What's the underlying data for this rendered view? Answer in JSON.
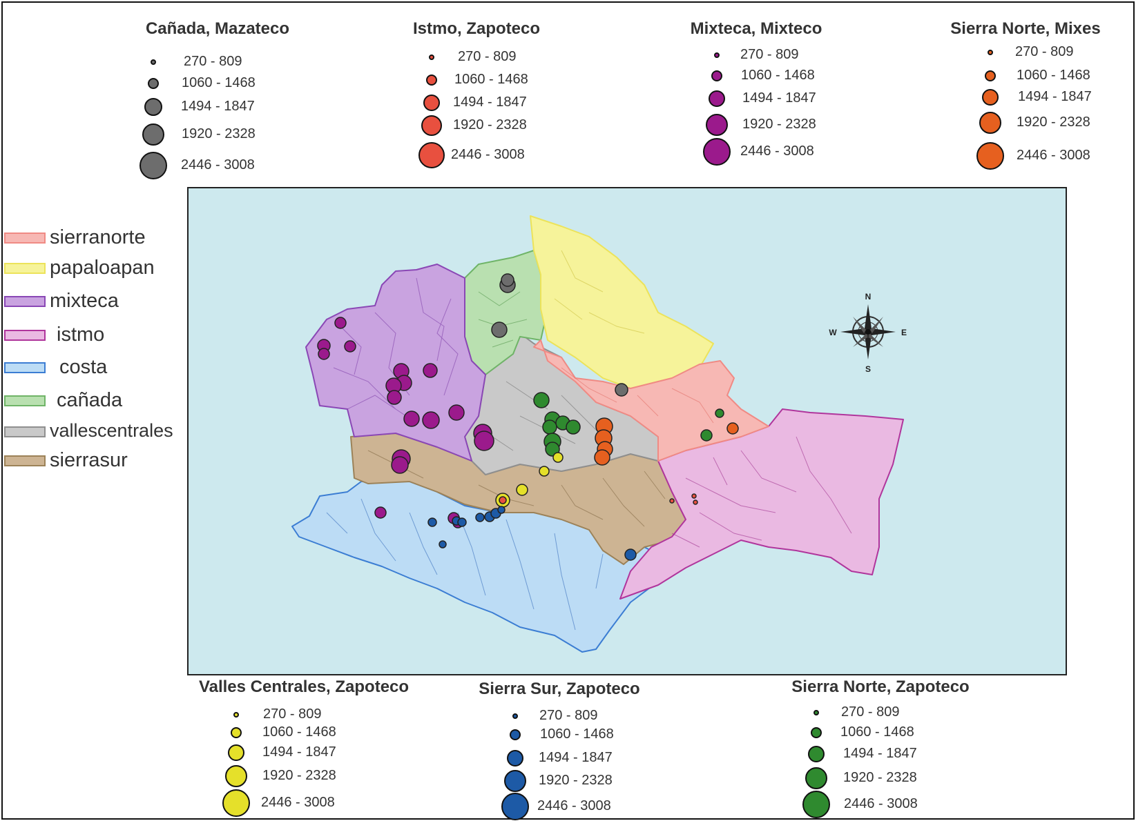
{
  "size_legends": [
    {
      "title": "Cañada, Mazateco",
      "color": "#6d6d6d",
      "items": [
        "270 - 809",
        "1060 - 1468",
        "1494 - 1847",
        "1920 - 2328",
        "2446 - 3008"
      ]
    },
    {
      "title": "Istmo, Zapoteco",
      "color": "#e8503f",
      "items": [
        "270 - 809",
        "1060 - 1468",
        "1494 - 1847",
        "1920 - 2328",
        "2446 - 3008"
      ]
    },
    {
      "title": "Mixteca, Mixteco",
      "color": "#9b1a8c",
      "items": [
        "270 - 809",
        "1060 - 1468",
        "1494 - 1847",
        "1920 - 2328",
        "2446 - 3008"
      ]
    },
    {
      "title": "Sierra Norte, Mixes",
      "color": "#e6601f",
      "items": [
        "270 - 809",
        "1060 - 1468",
        "1494 - 1847",
        "1920 - 2328",
        "2446 - 3008"
      ]
    },
    {
      "title": "Valles Centrales, Zapoteco",
      "color": "#e5e02a",
      "items": [
        "270 - 809",
        "1060 - 1468",
        "1494 - 1847",
        "1920 - 2328",
        "2446 - 3008"
      ]
    },
    {
      "title": "Sierra Sur, Zapoteco",
      "color": "#1d5aa6",
      "items": [
        "270 - 809",
        "1060 - 1468",
        "1494 - 1847",
        "1920 - 2328",
        "2446 - 3008"
      ]
    },
    {
      "title": "Sierra Norte, Zapoteco",
      "color": "#2f8a2f",
      "items": [
        "270 - 809",
        "1060 - 1468",
        "1494 - 1847",
        "1920 - 2328",
        "2446 - 3008"
      ]
    }
  ],
  "regions": [
    {
      "label": "sierranorte",
      "fill": "#f7b8b4",
      "stroke": "#f08a84"
    },
    {
      "label": "papaloapan",
      "fill": "#f6f39a",
      "stroke": "#ece35a"
    },
    {
      "label": "mixteca",
      "fill": "#c9a3e0",
      "stroke": "#8a47b5"
    },
    {
      "label": "istmo",
      "fill": "#eab9e2",
      "stroke": "#b0359c"
    },
    {
      "label": "costa",
      "fill": "#bcdcf5",
      "stroke": "#3b7dd3"
    },
    {
      "label": "cañada",
      "fill": "#b9e0b0",
      "stroke": "#6fb467"
    },
    {
      "label": "vallescentrales",
      "fill": "#c9c9c9",
      "stroke": "#8f8f8f"
    },
    {
      "label": "sierrasur",
      "fill": "#cdb493",
      "stroke": "#9c8258"
    }
  ],
  "compass": {
    "n": "N",
    "s": "S",
    "e": "E",
    "w": "W"
  }
}
